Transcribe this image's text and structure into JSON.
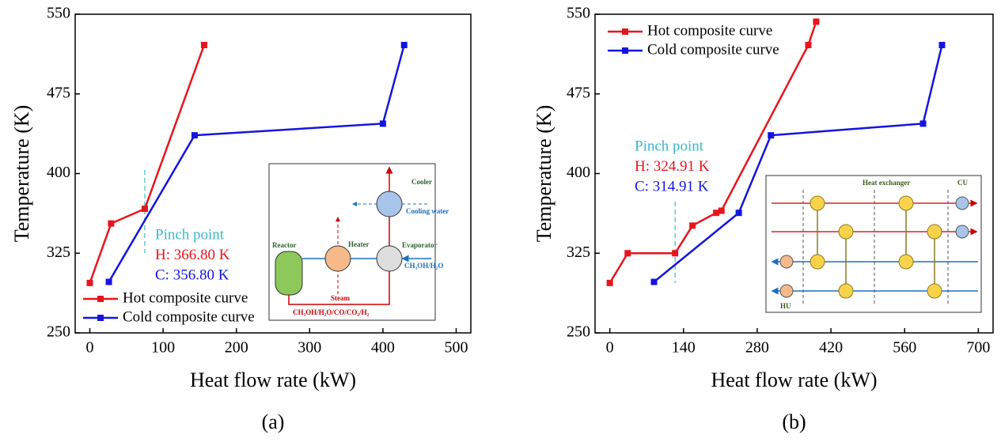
{
  "chart_data": [
    {
      "type": "line",
      "caption": "(a)",
      "x_label": "Heat flow rate (kW)",
      "y_label": "Temperature (K)",
      "xlim": [
        -20,
        520
      ],
      "ylim": [
        250,
        550
      ],
      "xticks": [
        0,
        100,
        200,
        300,
        400,
        500
      ],
      "yticks": [
        250,
        325,
        400,
        475,
        550
      ],
      "legend_loc": "lower left",
      "series": [
        {
          "name": "Hot composite curve",
          "color": "#e8141c",
          "x": [
            0,
            29,
            75,
            156
          ],
          "values": [
            297,
            353,
            366.8,
            521
          ]
        },
        {
          "name": "Cold composite curve",
          "color": "#1414e0",
          "x": [
            26,
            143,
            400,
            429
          ],
          "values": [
            298,
            436,
            447,
            521
          ]
        }
      ],
      "annotations": [
        {
          "text": "Pinch point",
          "color": "#3cb8c8"
        },
        {
          "text": "H: 366.80 K",
          "color": "#e8141c"
        },
        {
          "text": "C: 356.80 K",
          "color": "#1414e0"
        }
      ],
      "inset_labels": [
        "Cooler",
        "Cooling water",
        "Reactor",
        "Heater",
        "Evaporator",
        "CH₃OH/H₂O",
        "Steam",
        "CH₃OH/H₂O/CO/CO₂/H₂"
      ]
    },
    {
      "type": "line",
      "caption": "(b)",
      "x_label": "Heat flow rate (kW)",
      "y_label": "Temperature (K)",
      "xlim": [
        -28,
        728
      ],
      "ylim": [
        250,
        550
      ],
      "xticks": [
        0,
        140,
        280,
        420,
        560,
        700
      ],
      "yticks": [
        250,
        325,
        400,
        475,
        550
      ],
      "legend_loc": "upper left",
      "series": [
        {
          "name": "Hot composite curve",
          "color": "#e8141c",
          "x": [
            0,
            34,
            124,
            157,
            202,
            212,
            377,
            392
          ],
          "values": [
            297,
            325,
            325,
            351,
            363,
            365,
            521,
            543
          ]
        },
        {
          "name": "Cold composite curve",
          "color": "#1414e0",
          "x": [
            84,
            245,
            306,
            595,
            631
          ],
          "values": [
            298,
            363,
            436,
            447,
            521
          ]
        }
      ],
      "annotations": [
        {
          "text": "Pinch point",
          "color": "#3cb8c8"
        },
        {
          "text": "H: 324.91 K",
          "color": "#e8141c"
        },
        {
          "text": "C: 314.91 K",
          "color": "#1414e0"
        }
      ],
      "inset_labels": [
        "Heat exchanger",
        "CU",
        "HU"
      ]
    }
  ]
}
